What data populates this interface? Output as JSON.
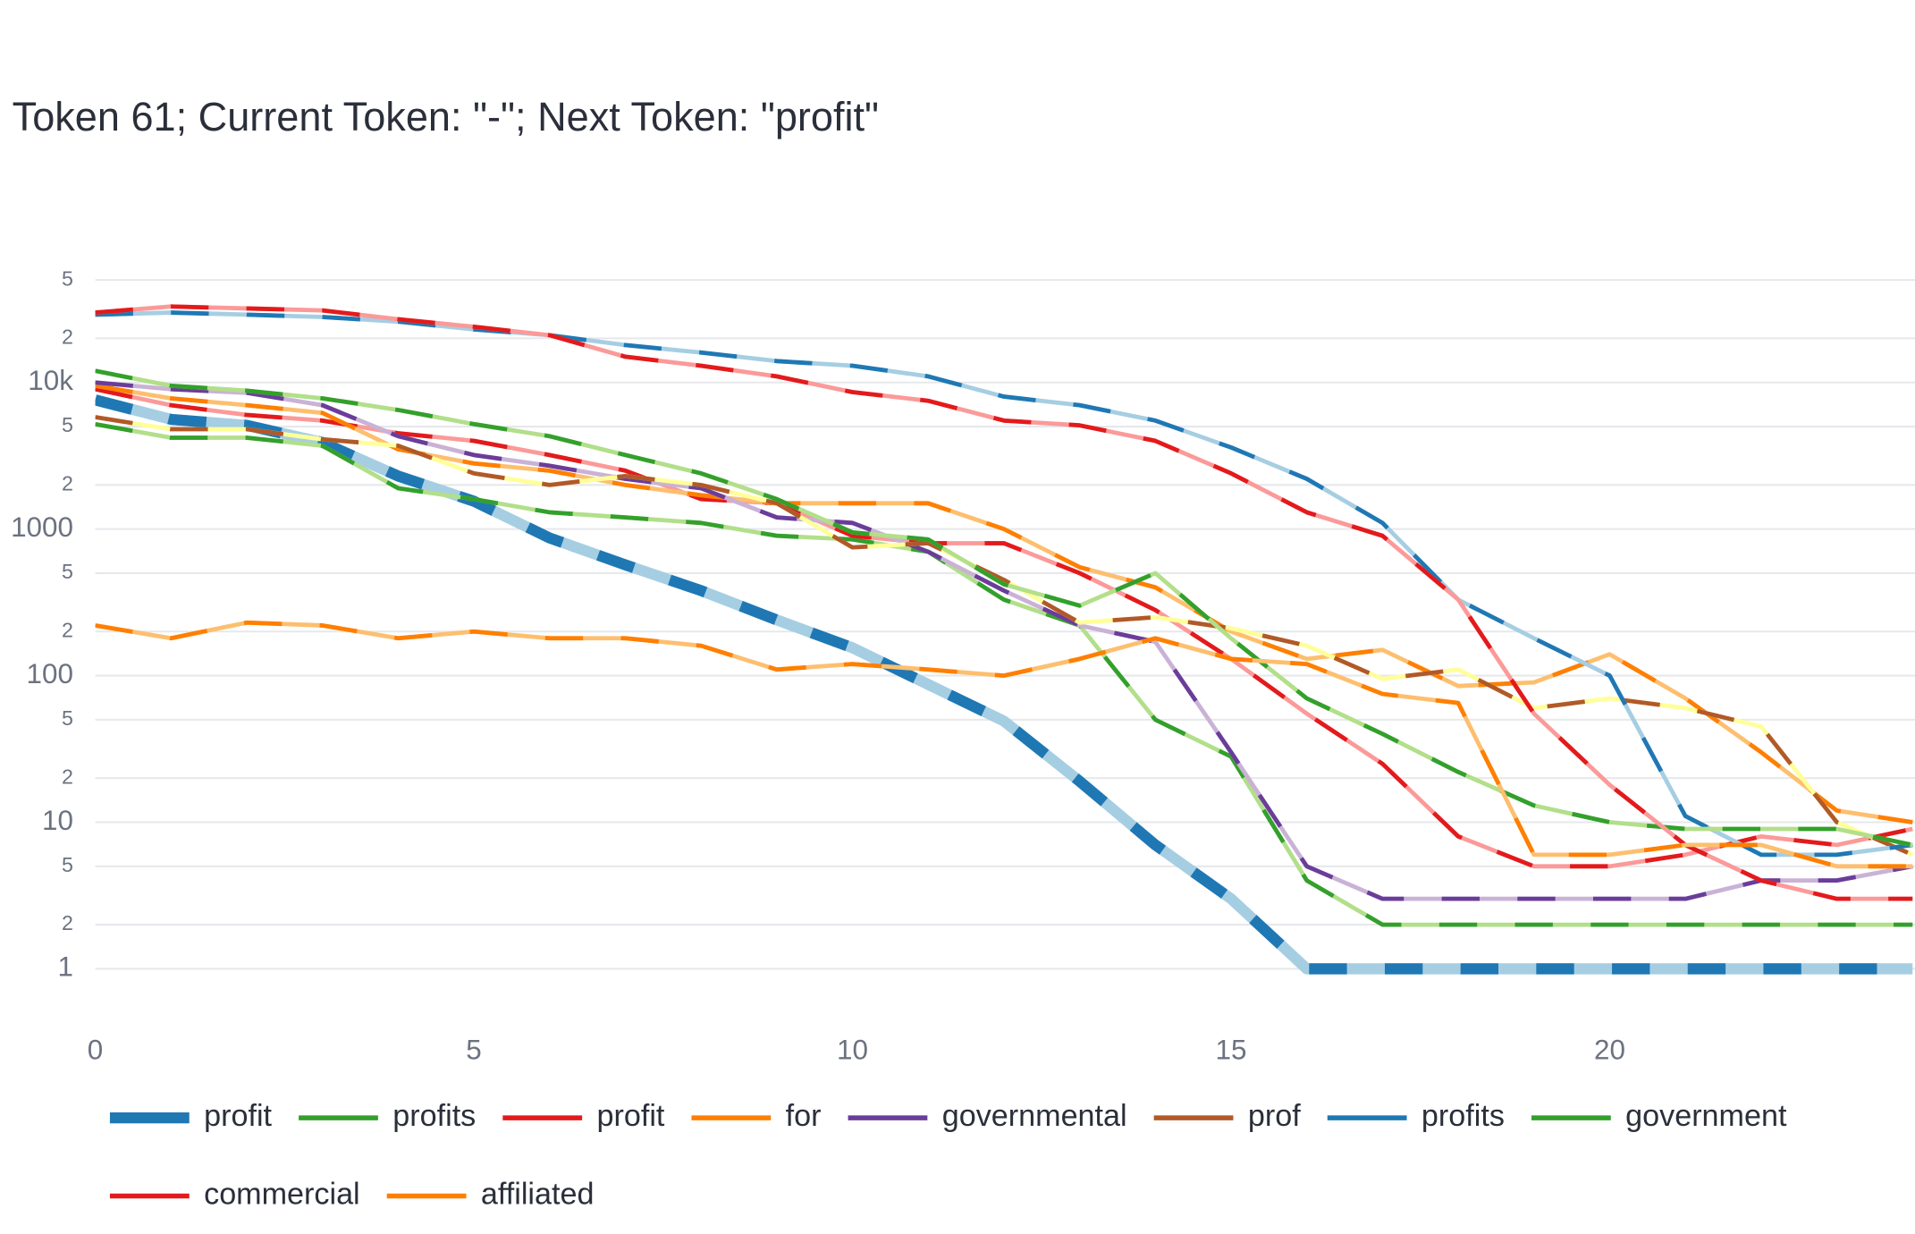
{
  "chart_data": {
    "type": "line",
    "title": "Token 61; Current Token: \"-\"; Next Token: \"profit\"",
    "log_y": true,
    "grid": true,
    "legend": "bottom",
    "x": [
      0,
      1,
      2,
      3,
      4,
      5,
      6,
      7,
      8,
      9,
      10,
      11,
      12,
      13,
      14,
      15,
      16,
      17,
      18,
      19,
      20,
      21,
      22,
      23,
      24
    ],
    "xlim": [
      0,
      24
    ],
    "xticks": [
      0,
      5,
      10,
      15,
      20
    ],
    "ylim": [
      0.5,
      70000
    ],
    "yticks": [
      1,
      2,
      5,
      10,
      {
        "value": 20,
        "label": "2"
      },
      {
        "value": 50,
        "label": "5"
      },
      100,
      {
        "value": 200,
        "label": "2"
      },
      {
        "value": 500,
        "label": "5"
      },
      1000,
      {
        "value": 2000,
        "label": "2"
      },
      {
        "value": 5000,
        "label": "5"
      },
      {
        "value": 10000,
        "label": "10k"
      },
      {
        "value": 20000,
        "label": "2"
      },
      {
        "value": 50000,
        "label": "5"
      }
    ],
    "series": [
      {
        "name": "profit",
        "color": "#1f78b4",
        "color2": "#a6cee3",
        "width": 9,
        "values": [
          7600,
          5600,
          5100,
          3900,
          2300,
          1550,
          870,
          570,
          380,
          240,
          155,
          87,
          49,
          19,
          7,
          3,
          1,
          1,
          1,
          1,
          1,
          1,
          1,
          1,
          1
        ]
      },
      {
        "name": "profits",
        "color": "#33a02c",
        "color2": "#b2df8a",
        "width": 3.5,
        "values": [
          5200,
          4200,
          4200,
          3700,
          1900,
          1600,
          1300,
          1200,
          1100,
          900,
          850,
          700,
          330,
          220,
          50,
          28,
          4,
          2,
          2,
          2,
          2,
          2,
          2,
          2,
          2
        ]
      },
      {
        "name": "profit",
        "color": "#e31a1c",
        "color2": "#fb9a99",
        "width": 3.5,
        "values": [
          9000,
          7000,
          6000,
          5500,
          4500,
          4000,
          3200,
          2500,
          1600,
          1500,
          900,
          800,
          800,
          500,
          280,
          130,
          55,
          25,
          8,
          5,
          5,
          6,
          8,
          7,
          9
        ]
      },
      {
        "name": "for",
        "color": "#ff7f00",
        "color2": "#fdbf6f",
        "width": 3.5,
        "values": [
          9500,
          7800,
          7000,
          6200,
          3500,
          2800,
          2500,
          2000,
          1700,
          1500,
          1500,
          1500,
          1000,
          550,
          400,
          200,
          130,
          150,
          85,
          90,
          140,
          70,
          30,
          12,
          10
        ]
      },
      {
        "name": "governmental",
        "color": "#6a3d9a",
        "color2": "#cab2d6",
        "width": 3.5,
        "values": [
          10000,
          9000,
          8500,
          7000,
          4300,
          3200,
          2700,
          2200,
          1900,
          1200,
          1100,
          700,
          380,
          220,
          170,
          30,
          5,
          3,
          3,
          3,
          3,
          3,
          4,
          4,
          5
        ]
      },
      {
        "name": "prof",
        "color": "#b15928",
        "color2": "#ffff99",
        "width": 3.5,
        "values": [
          5800,
          4800,
          4800,
          4100,
          3700,
          2400,
          2000,
          2300,
          2000,
          1500,
          750,
          800,
          450,
          230,
          250,
          210,
          160,
          95,
          110,
          60,
          70,
          60,
          45,
          10,
          6
        ]
      },
      {
        "name": "profits",
        "color": "#1f78b4",
        "color2": "#a6cee3",
        "width": 3.5,
        "values": [
          29000,
          30000,
          29000,
          28000,
          26000,
          23000,
          21000,
          18000,
          16000,
          14000,
          13000,
          11000,
          8000,
          7000,
          5500,
          3600,
          2200,
          1100,
          330,
          180,
          100,
          11,
          6,
          6,
          7
        ]
      },
      {
        "name": "government",
        "color": "#33a02c",
        "color2": "#b2df8a",
        "width": 3.5,
        "values": [
          12000,
          9500,
          8800,
          7800,
          6500,
          5200,
          4300,
          3200,
          2400,
          1600,
          950,
          850,
          420,
          300,
          500,
          180,
          70,
          40,
          22,
          13,
          10,
          9,
          9,
          9,
          7
        ]
      },
      {
        "name": "commercial",
        "color": "#e31a1c",
        "color2": "#fb9a99",
        "width": 3.5,
        "values": [
          30000,
          33000,
          32000,
          31000,
          27000,
          24000,
          21000,
          15000,
          13000,
          11000,
          8600,
          7500,
          5500,
          5100,
          4000,
          2400,
          1300,
          900,
          330,
          55,
          18,
          7,
          4,
          3,
          3
        ]
      },
      {
        "name": "affiliated",
        "color": "#ff7f00",
        "color2": "#fdbf6f",
        "width": 3.5,
        "values": [
          220,
          180,
          230,
          220,
          180,
          200,
          180,
          180,
          160,
          110,
          120,
          110,
          100,
          130,
          180,
          130,
          120,
          75,
          65,
          6,
          6,
          7,
          7,
          5,
          5
        ]
      }
    ]
  }
}
